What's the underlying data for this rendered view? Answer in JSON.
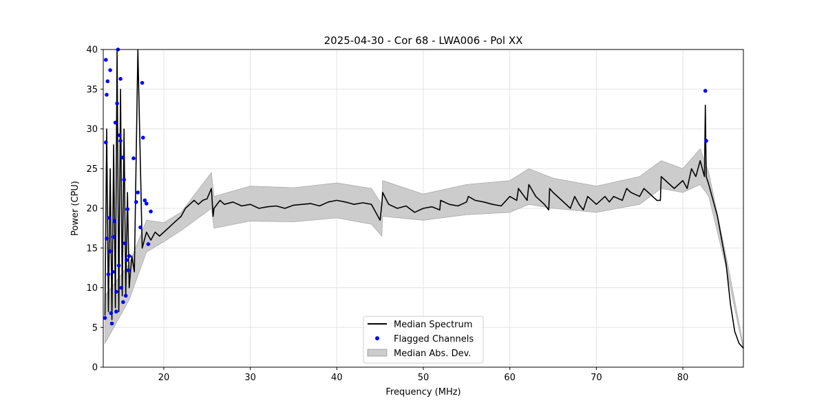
{
  "chart_data": {
    "type": "line",
    "title": "2025-04-30 - Cor 68 - LWA006 - Pol XX",
    "xlabel": "Frequency (MHz)",
    "ylabel": "Power (CPU)",
    "xlim": [
      13,
      87
    ],
    "ylim": [
      0,
      40
    ],
    "xticks": [
      20,
      30,
      40,
      50,
      60,
      70,
      80
    ],
    "yticks": [
      0,
      5,
      10,
      15,
      20,
      25,
      30,
      35,
      40
    ],
    "grid": true,
    "legend_position": "bottom-center",
    "series": [
      {
        "name": "Median Spectrum",
        "kind": "line",
        "color": "#000000",
        "x": [
          13.2,
          13.4,
          13.6,
          13.8,
          14.0,
          14.2,
          14.4,
          14.6,
          14.8,
          15.0,
          15.2,
          15.4,
          15.6,
          15.8,
          16.0,
          16.3,
          16.6,
          17.0,
          17.5,
          18.0,
          18.5,
          19.0,
          19.5,
          20.0,
          20.5,
          21.0,
          21.5,
          22.0,
          22.5,
          23.0,
          23.5,
          24.0,
          24.5,
          25.0,
          25.5,
          25.7,
          25.8,
          26.5,
          27.0,
          28.0,
          29.0,
          30.0,
          31.0,
          32.0,
          33.0,
          34.0,
          35.0,
          36.0,
          37.0,
          38.0,
          39.0,
          40.0,
          41.0,
          42.0,
          43.0,
          44.0,
          45.0,
          45.2,
          45.3,
          46.0,
          47.0,
          48.0,
          49.0,
          50.0,
          51.0,
          51.9,
          52.0,
          53.0,
          54.0,
          55.0,
          55.2,
          56.0,
          57.0,
          58.0,
          59.0,
          60.0,
          60.8,
          61.0,
          62.0,
          62.2,
          63.0,
          64.0,
          64.5,
          64.6,
          65.0,
          66.0,
          67.0,
          67.5,
          68.0,
          68.5,
          69.0,
          70.0,
          71.0,
          71.5,
          72.0,
          73.0,
          73.5,
          74.0,
          75.0,
          75.5,
          76.0,
          77.0,
          77.4,
          77.5,
          78.0,
          79.0,
          80.0,
          80.5,
          81.0,
          81.5,
          82.0,
          82.5,
          82.6,
          82.7,
          83.0,
          84.0,
          85.0,
          85.5,
          86.0,
          86.5,
          87.0
        ],
        "y": [
          6.5,
          30.0,
          7.0,
          25.0,
          6.0,
          28.0,
          7.5,
          40.0,
          7.0,
          35.0,
          9.0,
          30.0,
          9.0,
          22.0,
          10.0,
          14.0,
          12.0,
          40.0,
          15.0,
          17.0,
          16.0,
          17.0,
          16.5,
          17.0,
          17.5,
          18.0,
          18.5,
          19.0,
          20.0,
          20.5,
          21.0,
          20.5,
          21.0,
          21.2,
          22.5,
          19.0,
          20.0,
          21.0,
          20.5,
          20.8,
          20.3,
          20.5,
          20.0,
          20.2,
          20.3,
          20.0,
          20.4,
          20.5,
          20.6,
          20.3,
          20.8,
          21.0,
          20.8,
          20.5,
          20.7,
          20.5,
          18.5,
          20.5,
          22.0,
          20.5,
          20.0,
          20.3,
          19.5,
          20.0,
          20.2,
          19.8,
          21.0,
          20.5,
          20.3,
          20.8,
          21.5,
          21.0,
          20.8,
          20.5,
          20.3,
          21.5,
          21.0,
          22.5,
          21.0,
          23.0,
          21.5,
          20.5,
          19.8,
          22.5,
          22.0,
          21.0,
          20.0,
          21.5,
          20.5,
          19.8,
          21.5,
          20.5,
          21.5,
          20.8,
          21.5,
          21.0,
          22.5,
          22.0,
          21.5,
          22.5,
          22.0,
          21.0,
          21.0,
          24.0,
          23.5,
          22.5,
          23.5,
          22.5,
          25.0,
          24.0,
          26.0,
          24.0,
          33.0,
          24.0,
          23.0,
          19.0,
          13.0,
          8.0,
          4.5,
          3.0,
          2.4
        ],
        "dense_region_xlim": [
          13.2,
          18.5
        ]
      },
      {
        "name": "Flagged Channels",
        "kind": "scatter",
        "color": "#0000ff",
        "x": [
          13.2,
          13.3,
          13.3,
          13.4,
          13.4,
          13.5,
          13.6,
          13.7,
          13.8,
          13.8,
          13.9,
          14.0,
          14.1,
          14.2,
          14.3,
          14.4,
          14.5,
          14.5,
          14.6,
          14.7,
          14.8,
          14.9,
          15.0,
          15.0,
          15.1,
          15.2,
          15.3,
          15.4,
          15.5,
          15.6,
          15.7,
          15.8,
          15.9,
          16.0,
          16.5,
          16.8,
          17.0,
          17.3,
          17.5,
          17.6,
          17.8,
          18.0,
          18.2,
          18.5,
          82.6,
          82.7
        ],
        "y": [
          6.2,
          38.7,
          28.3,
          34.3,
          16.2,
          36.0,
          11.7,
          18.8,
          14.6,
          37.4,
          6.8,
          5.5,
          12.0,
          16.4,
          18.4,
          30.8,
          9.5,
          7.0,
          33.2,
          40.0,
          12.8,
          29.2,
          36.3,
          28.5,
          10.0,
          26.4,
          8.2,
          23.6,
          15.6,
          9.0,
          13.5,
          19.9,
          12.2,
          14.0,
          26.3,
          20.8,
          22.0,
          17.6,
          35.8,
          28.9,
          21.0,
          20.6,
          15.5,
          19.6,
          34.8,
          28.5
        ]
      },
      {
        "name": "Median Abs. Dev.",
        "kind": "band",
        "color": "#cccccc",
        "x": [
          13.2,
          16.0,
          18.0,
          20.0,
          22.0,
          25.5,
          25.8,
          30.0,
          35.0,
          40.0,
          44.0,
          45.2,
          45.3,
          50.0,
          55.0,
          60.0,
          62.2,
          65.0,
          70.0,
          75.0,
          77.5,
          80.0,
          82.0,
          83.0,
          85.0,
          87.0
        ],
        "lower": [
          3.0,
          8.5,
          14.5,
          15.8,
          17.2,
          20.0,
          17.5,
          18.4,
          18.3,
          18.8,
          18.0,
          16.5,
          19.0,
          18.5,
          19.2,
          19.5,
          20.5,
          20.0,
          19.5,
          20.5,
          22.5,
          22.0,
          23.0,
          21.5,
          12.5,
          2.2
        ],
        "upper": [
          9.0,
          13.0,
          18.5,
          18.2,
          19.5,
          24.5,
          21.5,
          22.8,
          22.6,
          23.2,
          22.5,
          20.5,
          23.5,
          21.8,
          23.0,
          23.5,
          25.0,
          23.8,
          22.8,
          24.0,
          26.0,
          25.0,
          27.5,
          24.5,
          14.0,
          2.7
        ]
      }
    ]
  }
}
